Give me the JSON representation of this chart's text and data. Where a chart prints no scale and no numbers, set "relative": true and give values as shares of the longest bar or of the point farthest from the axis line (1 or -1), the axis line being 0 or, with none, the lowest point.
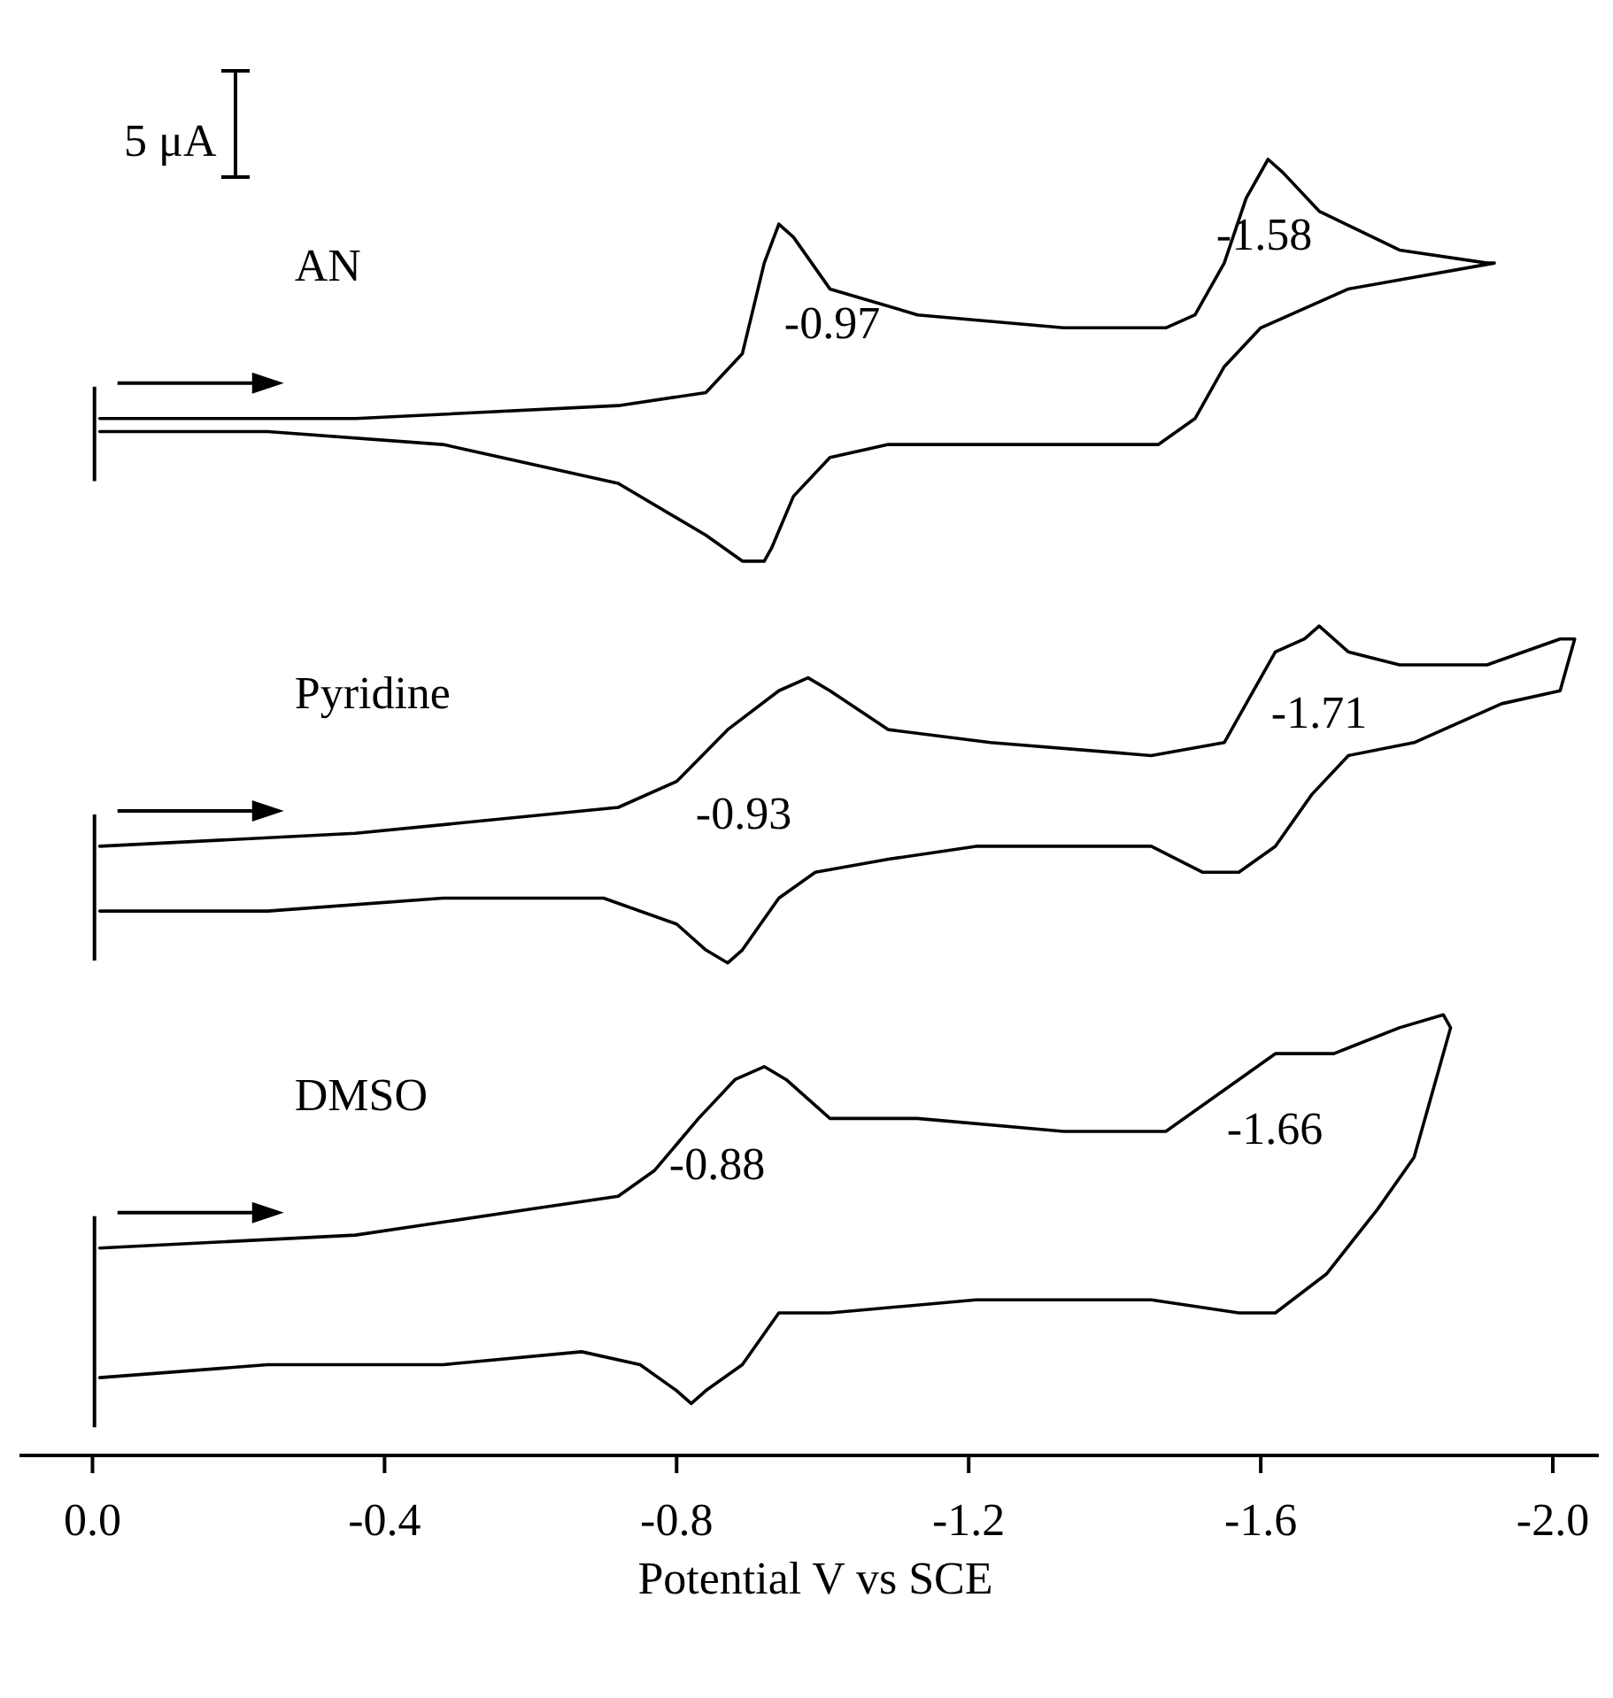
{
  "chart_data": {
    "type": "line",
    "relative": true,
    "xlabel": "Potential V vs SCE",
    "xlim": [
      0.1,
      -2.08
    ],
    "xticks": [
      {
        "value": 0,
        "label": "0.0"
      },
      -0.4,
      -0.8,
      -1.2,
      -1.6,
      {
        "value": -2,
        "label": "-2.0"
      }
    ],
    "grid": false,
    "legend": false,
    "marker": "none",
    "line_style": "solid",
    "annotations": [
      "5 μA",
      "-0.97",
      "-1.58",
      "-0.93",
      "-1.71",
      "-0.88",
      "-1.66"
    ],
    "series": [
      {
        "name": "AN",
        "color": "#000000",
        "x": [
          -0.01,
          -0.36,
          -0.72,
          -0.84,
          -0.89,
          -0.92,
          -0.94,
          -0.96,
          -1.01,
          -1.13,
          -1.33,
          -1.47,
          -1.51,
          -1.55,
          -1.58,
          -1.61,
          -1.63,
          -1.68,
          -1.79,
          -1.91,
          -1.92,
          -1.72,
          -1.6,
          -1.55,
          -1.51,
          -1.46,
          -1.35,
          -1.09,
          -1.01,
          -0.96,
          -0.93,
          -0.92,
          -0.89,
          -0.84,
          -0.72,
          -0.48,
          -0.24,
          -0.01
        ],
        "values": [
          0.8,
          0.8,
          0.81,
          0.82,
          0.85,
          0.92,
          0.95,
          0.94,
          0.9,
          0.88,
          0.87,
          0.87,
          0.88,
          0.92,
          0.97,
          1.0,
          0.99,
          0.96,
          0.93,
          0.92,
          0.92,
          0.9,
          0.87,
          0.84,
          0.8,
          0.78,
          0.78,
          0.78,
          0.77,
          0.74,
          0.7,
          0.69,
          0.69,
          0.71,
          0.75,
          0.78,
          0.79,
          0.79
        ]
      },
      {
        "name": "Pyridine",
        "color": "#000000",
        "x": [
          -0.01,
          -0.36,
          -0.72,
          -0.8,
          -0.87,
          -0.94,
          -0.98,
          -1.01,
          -1.09,
          -1.23,
          -1.45,
          -1.55,
          -1.58,
          -1.62,
          -1.66,
          -1.68,
          -1.72,
          -1.79,
          -1.91,
          -2.01,
          -2.03,
          -2.01,
          -1.93,
          -1.81,
          -1.72,
          -1.67,
          -1.62,
          -1.57,
          -1.52,
          -1.45,
          -1.33,
          -1.21,
          -1.09,
          -0.99,
          -0.94,
          -0.89,
          -0.87,
          -0.84,
          -0.8,
          -0.7,
          -0.48,
          -0.24,
          -0.01
        ],
        "values": [
          0.47,
          0.48,
          0.5,
          0.52,
          0.56,
          0.59,
          0.6,
          0.59,
          0.56,
          0.55,
          0.54,
          0.55,
          0.58,
          0.62,
          0.63,
          0.64,
          0.62,
          0.61,
          0.61,
          0.63,
          0.63,
          0.59,
          0.58,
          0.55,
          0.54,
          0.51,
          0.47,
          0.45,
          0.45,
          0.47,
          0.47,
          0.47,
          0.46,
          0.45,
          0.43,
          0.39,
          0.38,
          0.39,
          0.41,
          0.43,
          0.43,
          0.42,
          0.42
        ]
      },
      {
        "name": "DMSO",
        "color": "#000000",
        "x": [
          -0.01,
          -0.36,
          -0.6,
          -0.72,
          -0.77,
          -0.83,
          -0.88,
          -0.92,
          -0.95,
          -1.01,
          -1.13,
          -1.33,
          -1.47,
          -1.52,
          -1.57,
          -1.62,
          -1.67,
          -1.7,
          -1.79,
          -1.85,
          -1.86,
          -1.84,
          -1.81,
          -1.76,
          -1.69,
          -1.62,
          -1.57,
          -1.45,
          -1.21,
          -1.01,
          -0.94,
          -0.89,
          -0.84,
          -0.82,
          -0.8,
          -0.75,
          -0.67,
          -0.48,
          -0.24,
          -0.01
        ],
        "values": [
          0.16,
          0.17,
          0.19,
          0.2,
          0.22,
          0.26,
          0.29,
          0.3,
          0.29,
          0.26,
          0.26,
          0.25,
          0.25,
          0.27,
          0.29,
          0.31,
          0.31,
          0.31,
          0.33,
          0.34,
          0.33,
          0.29,
          0.23,
          0.19,
          0.14,
          0.11,
          0.11,
          0.12,
          0.12,
          0.11,
          0.11,
          0.07,
          0.05,
          0.04,
          0.05,
          0.07,
          0.08,
          0.07,
          0.07,
          0.06
        ]
      }
    ]
  }
}
